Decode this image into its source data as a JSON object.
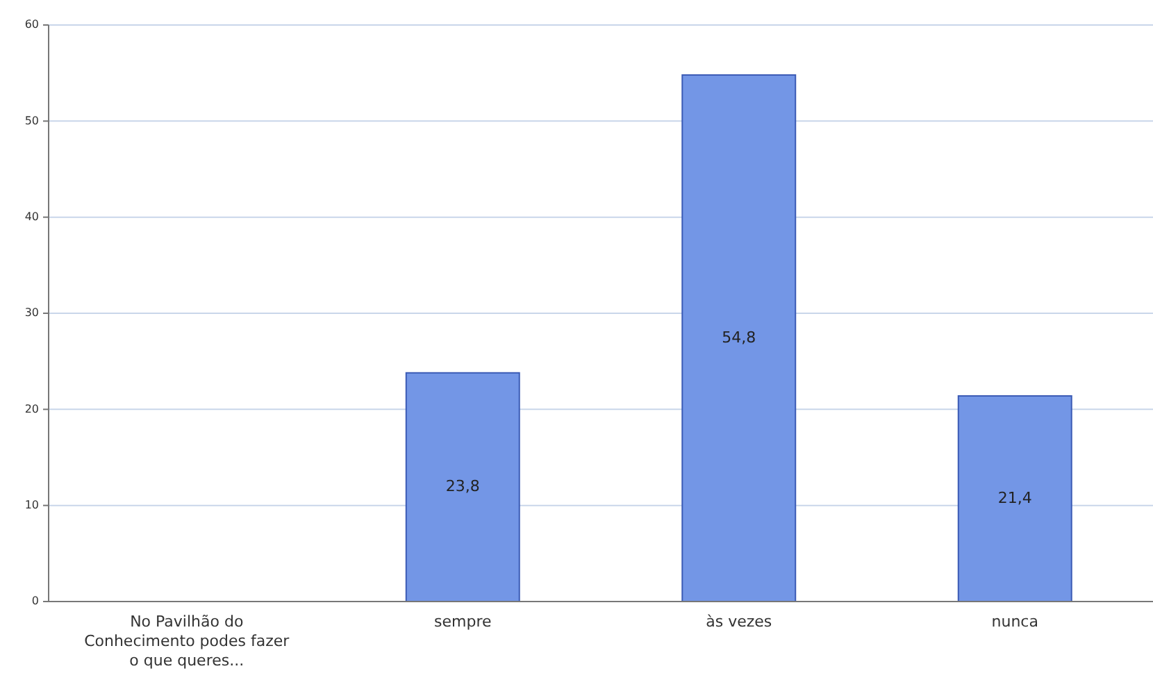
{
  "chart_data": {
    "type": "bar",
    "categories": [
      "No Pavilhão do Conhecimento podes fazer o que queres...",
      "sempre",
      "às vezes",
      "nunca"
    ],
    "values": [
      null,
      23.8,
      54.8,
      21.4
    ],
    "value_labels": [
      null,
      "23,8",
      "54,8",
      "21,4"
    ],
    "color": "#7396e6",
    "ylim": [
      0,
      60
    ],
    "yticks": [
      0,
      10,
      20,
      30,
      40,
      50,
      60
    ],
    "grid": "y"
  }
}
